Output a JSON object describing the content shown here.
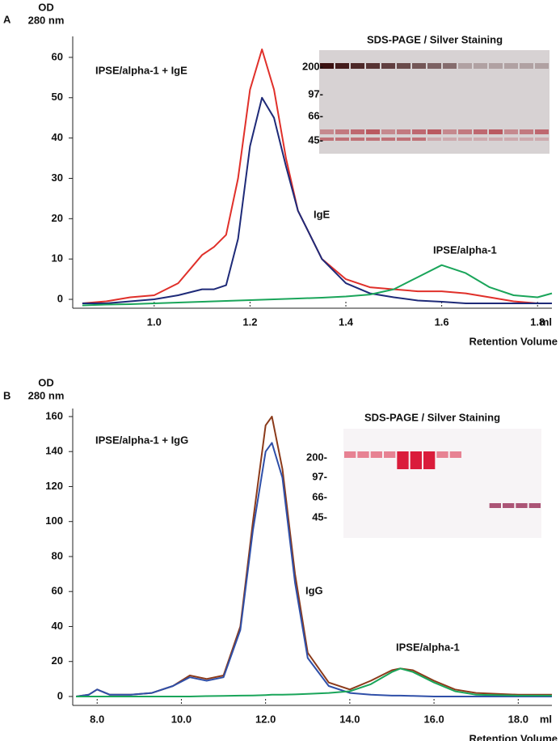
{
  "chart_data": [
    {
      "type": "line",
      "panel": "A",
      "ylabel": [
        "OD",
        "280 nm"
      ],
      "xlabel": "Retention Volume",
      "x_unit": "ml",
      "x": [
        0.85,
        0.9,
        0.95,
        1.0,
        1.05,
        1.1,
        1.125,
        1.15,
        1.175,
        1.2,
        1.225,
        1.25,
        1.275,
        1.3,
        1.35,
        1.4,
        1.45,
        1.5,
        1.55,
        1.6,
        1.65,
        1.7,
        1.75,
        1.8,
        1.83
      ],
      "series": [
        {
          "name": "IPSE/alpha-1 + IgE",
          "color": "#e0302a",
          "values": [
            -1,
            -0.5,
            0.5,
            1,
            4,
            11,
            13,
            16,
            30,
            52,
            62,
            52,
            35,
            22,
            10,
            5,
            3,
            2.5,
            2,
            2,
            1.5,
            0.5,
            -0.5,
            -1,
            -1
          ]
        },
        {
          "name": "IgE",
          "color": "#1e2a78",
          "values": [
            -1,
            -1,
            -0.5,
            0,
            1,
            2.5,
            2.5,
            3.5,
            15,
            38,
            50,
            45,
            33,
            22,
            10,
            4,
            1.5,
            0.5,
            -0.3,
            -0.6,
            -1,
            -1,
            -1,
            -1,
            -1
          ]
        },
        {
          "name": "IPSE/alpha-1",
          "color": "#1aa55a",
          "values": [
            -1.5,
            -1.3,
            -1.2,
            -1,
            -0.8,
            -0.6,
            -0.5,
            -0.4,
            -0.3,
            -0.2,
            -0.1,
            0,
            0.1,
            0.2,
            0.4,
            0.7,
            1.2,
            2.5,
            5.5,
            8.5,
            6.5,
            3,
            1,
            0.5,
            1.5
          ]
        }
      ],
      "xlim": [
        0.83,
        1.83
      ],
      "ylim": [
        -2.2,
        65.2
      ],
      "xticks": [
        {
          "value": 1,
          "label": "1.0"
        },
        1.2,
        1.4,
        1.6,
        1.8
      ],
      "yticks": [
        0,
        10,
        20,
        30,
        40,
        50,
        60
      ],
      "inset": {
        "title": "SDS-PAGE  / Silver Staining",
        "markers": [
          "200-",
          "97-",
          "66-",
          "45-"
        ]
      }
    },
    {
      "type": "line",
      "panel": "B",
      "ylabel": [
        "OD",
        "280 nm"
      ],
      "xlabel": "Retention Volume",
      "x_unit": "ml",
      "x": [
        7.5,
        7.8,
        8.0,
        8.3,
        8.8,
        9.3,
        9.8,
        10.2,
        10.6,
        11.0,
        11.4,
        11.7,
        12.0,
        12.15,
        12.4,
        12.7,
        13.0,
        13.5,
        14.0,
        14.5,
        15.0,
        15.2,
        15.5,
        16.0,
        16.5,
        17.0,
        18.0,
        18.8
      ],
      "series": [
        {
          "name": "IPSE/alpha-1 + IgG",
          "color": "#8b3a1a",
          "values": [
            0,
            1,
            4,
            1,
            1,
            2,
            6,
            12,
            10,
            12,
            40,
            100,
            155,
            160,
            130,
            70,
            25,
            8,
            4,
            9,
            15,
            16,
            15,
            9,
            4,
            2,
            1,
            1
          ]
        },
        {
          "name": "IgG",
          "color": "#2f4fa8",
          "values": [
            0,
            1,
            4,
            1,
            1,
            2,
            6,
            11,
            9,
            11,
            38,
            95,
            140,
            145,
            125,
            65,
            22,
            6,
            2,
            1,
            0.5,
            0.5,
            0.3,
            0,
            0,
            0,
            0,
            0
          ]
        },
        {
          "name": "IPSE/alpha-1",
          "color": "#1aa55a",
          "values": [
            0,
            0,
            0,
            0,
            0,
            0,
            0,
            0,
            0.2,
            0.3,
            0.5,
            0.6,
            0.8,
            1,
            1,
            1.2,
            1.5,
            2,
            3,
            7,
            14,
            16,
            14,
            8,
            3,
            1,
            0.5,
            0.5
          ]
        }
      ],
      "xlim": [
        7.42,
        18.8
      ],
      "ylim": [
        -5.1,
        164.6
      ],
      "xticks": [
        {
          "value": 8,
          "label": "8.0"
        },
        {
          "value": 10,
          "label": "10.0"
        },
        {
          "value": 12,
          "label": "12.0"
        },
        {
          "value": 14,
          "label": "14.0"
        },
        {
          "value": 16,
          "label": "16.0"
        },
        {
          "value": 18,
          "label": "18.0"
        }
      ],
      "yticks": [
        0,
        20,
        40,
        60,
        80,
        100,
        120,
        140,
        160
      ],
      "inset": {
        "title": "SDS-PAGE  / Silver Staining",
        "markers": [
          "200-",
          "97-",
          "66-",
          "45-"
        ]
      }
    }
  ]
}
